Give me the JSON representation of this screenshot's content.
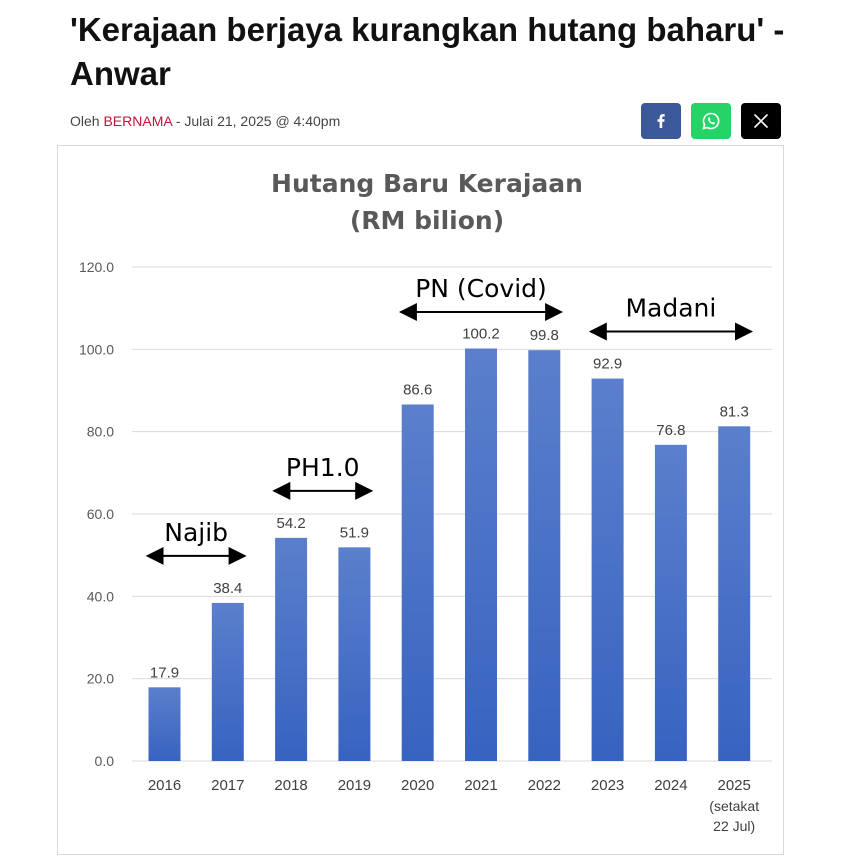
{
  "article": {
    "title": "'Kerajaan berjaya kurangkan hutang baharu' - Anwar",
    "byline_prefix": "Oleh",
    "byline_source": "BERNAMA",
    "byline_date": "- Julai 21, 2025 @ 4:40pm"
  },
  "share_buttons": [
    {
      "icon": "facebook-icon",
      "color": "#3b5998"
    },
    {
      "icon": "whatsapp-icon",
      "color": "#25d366"
    },
    {
      "icon": "x-icon",
      "color": "#000000"
    }
  ],
  "chart_data": {
    "type": "bar",
    "title": "Hutang Baru Kerajaan",
    "subtitle": "(RM bilion)",
    "xlabel": "",
    "ylabel": "",
    "categories": [
      "2016",
      "2017",
      "2018",
      "2019",
      "2020",
      "2021",
      "2022",
      "2023",
      "2024",
      "2025"
    ],
    "category_notes": [
      "",
      "",
      "",
      "",
      "",
      "",
      "",
      "",
      "",
      "(setakat 22 Jul)"
    ],
    "values": [
      17.9,
      38.4,
      54.2,
      51.9,
      86.6,
      100.2,
      99.8,
      92.9,
      76.8,
      81.3
    ],
    "value_labels": [
      "17.9",
      "38.4",
      "54.2",
      "51.9",
      "86.6",
      "100.2",
      "99.8",
      "92.9",
      "76.8",
      "81.3"
    ],
    "ylim": [
      0,
      120
    ],
    "yticks": [
      "0.0",
      "20.0",
      "40.0",
      "60.0",
      "80.0",
      "100.0",
      "120.0"
    ],
    "grid": true,
    "legend": "none",
    "bar_color_top": "#5b7fcc",
    "bar_color_bottom": "#3763c0",
    "annotations": [
      {
        "label": "Najib",
        "from": "2016",
        "to": "2017"
      },
      {
        "label": "PH1.0",
        "from": "2018",
        "to": "2019"
      },
      {
        "label": "PN (Covid)",
        "from": "2020",
        "to": "2022"
      },
      {
        "label": "Madani",
        "from": "2023",
        "to": "2025"
      }
    ]
  }
}
